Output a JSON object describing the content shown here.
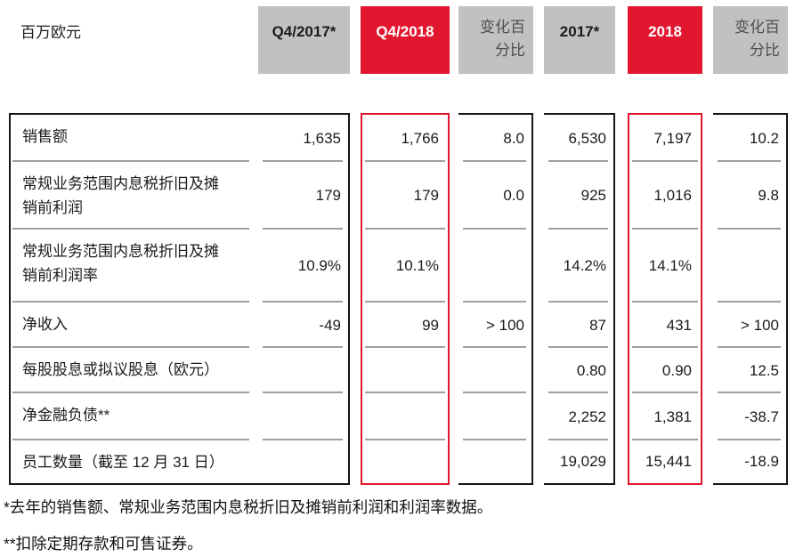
{
  "unit_label": "百万欧元",
  "colors": {
    "accent_red": "#e2172f",
    "header_grey": "#c1c1c1",
    "separator_grey": "#9f9f9f",
    "line_black": "#151515",
    "muted_header_text": "#4e4e4e"
  },
  "header": {
    "columns": [
      {
        "label": "Q4/2017*",
        "style": "grey"
      },
      {
        "label": "Q4/2018",
        "style": "red"
      },
      {
        "label": "变化百\n分比",
        "style": "grey-muted"
      },
      {
        "label": "2017*",
        "style": "grey"
      },
      {
        "label": "2018",
        "style": "red"
      },
      {
        "label": "变化百\n分比",
        "style": "grey-muted"
      }
    ]
  },
  "table": {
    "rows": [
      {
        "label": "销售额",
        "q4_2017": "1,635",
        "q4_2018": "1,766",
        "chg_q4": "8.0",
        "fy_2017": "6,530",
        "fy_2018": "7,197",
        "chg_fy": "10.2"
      },
      {
        "label": "常规业务范围内息税折旧及摊\n销前利润",
        "q4_2017": "179",
        "q4_2018": "179",
        "chg_q4": "0.0",
        "fy_2017": "925",
        "fy_2018": "1,016",
        "chg_fy": "9.8"
      },
      {
        "label": "常规业务范围内息税折旧及摊\n销前利润率",
        "q4_2017": "10.9%",
        "q4_2018": "10.1%",
        "chg_q4": "",
        "fy_2017": "14.2%",
        "fy_2018": "14.1%",
        "chg_fy": ""
      },
      {
        "label": "净收入",
        "q4_2017": "-49",
        "q4_2018": "99",
        "chg_q4": "> 100",
        "fy_2017": "87",
        "fy_2018": "431",
        "chg_fy": "> 100"
      },
      {
        "label": "每股股息或拟议股息（欧元）",
        "q4_2017": "",
        "q4_2018": "",
        "chg_q4": "",
        "fy_2017": "0.80",
        "fy_2018": "0.90",
        "chg_fy": "12.5"
      },
      {
        "label": "净金融负债**",
        "q4_2017": "",
        "q4_2018": "",
        "chg_q4": "",
        "fy_2017": "2,252",
        "fy_2018": "1,381",
        "chg_fy": "-38.7"
      },
      {
        "label": "员工数量（截至 12 月 31 日）",
        "q4_2017": "",
        "q4_2018": "",
        "chg_q4": "",
        "fy_2017": "19,029",
        "fy_2018": "15,441",
        "chg_fy": "-18.9"
      }
    ]
  },
  "footnotes": [
    "*去年的销售额、常规业务范围内息税折旧及摊销前利润和利润率数据。",
    "**扣除定期存款和可售证券。"
  ]
}
